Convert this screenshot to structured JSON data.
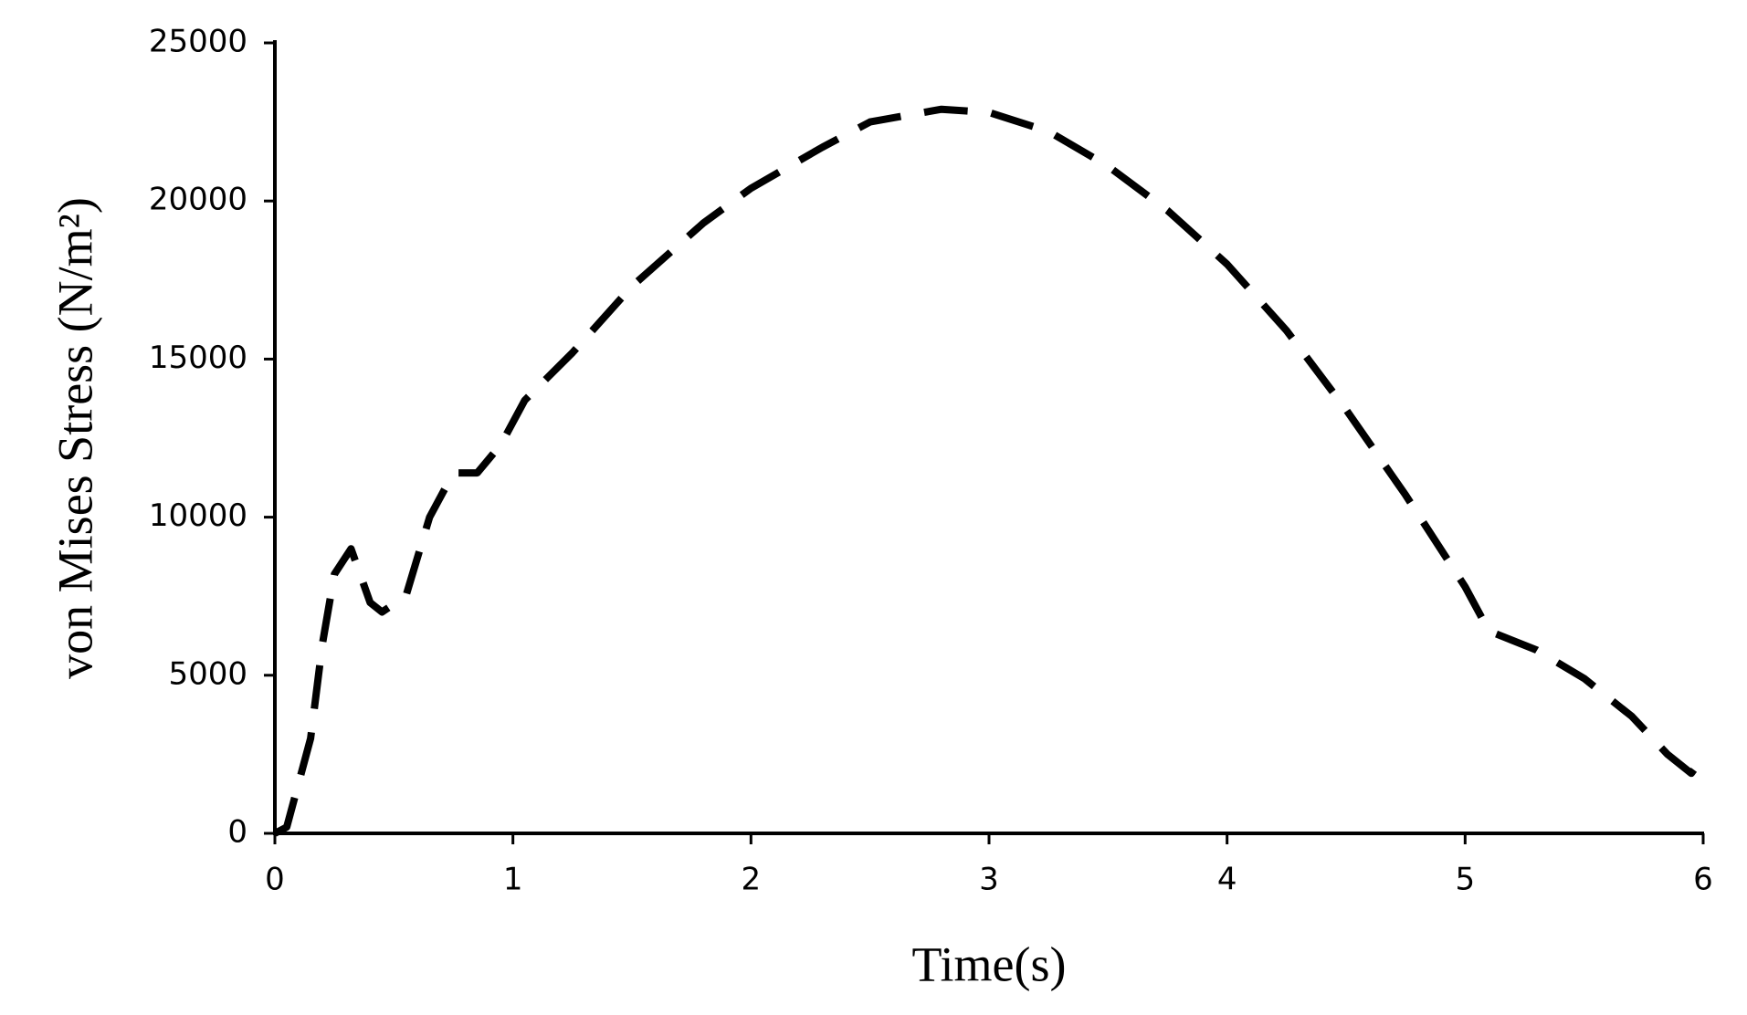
{
  "chart_data": {
    "type": "line",
    "xlabel": "Time(s)",
    "ylabel": "von Mises Stress (N/m²)",
    "x": [
      0,
      0.05,
      0.15,
      0.2,
      0.25,
      0.32,
      0.4,
      0.45,
      0.55,
      0.65,
      0.75,
      0.85,
      0.95,
      1.05,
      1.25,
      1.5,
      1.8,
      2.0,
      2.3,
      2.5,
      2.8,
      3.0,
      3.25,
      3.5,
      3.75,
      4.0,
      4.25,
      4.5,
      4.75,
      5.0,
      5.1,
      5.3,
      5.5,
      5.7,
      5.85,
      5.95,
      5.97
    ],
    "values": [
      0,
      200,
      3000,
      6000,
      8200,
      9000,
      7300,
      7000,
      7500,
      10000,
      11400,
      11400,
      12300,
      13700,
      15200,
      17300,
      19300,
      20400,
      21700,
      22500,
      22900,
      22800,
      22200,
      21100,
      19700,
      18000,
      15900,
      13400,
      10700,
      7800,
      6400,
      5800,
      4900,
      3700,
      2500,
      1900,
      2100
    ],
    "color": "#000000",
    "line_style": "dashed",
    "xlim": [
      0,
      6
    ],
    "xticks": [
      0,
      1,
      2,
      3,
      4,
      5,
      6
    ],
    "ylim": [
      0,
      25000
    ],
    "yticks": [
      0,
      5000,
      10000,
      15000,
      20000,
      25000
    ]
  }
}
